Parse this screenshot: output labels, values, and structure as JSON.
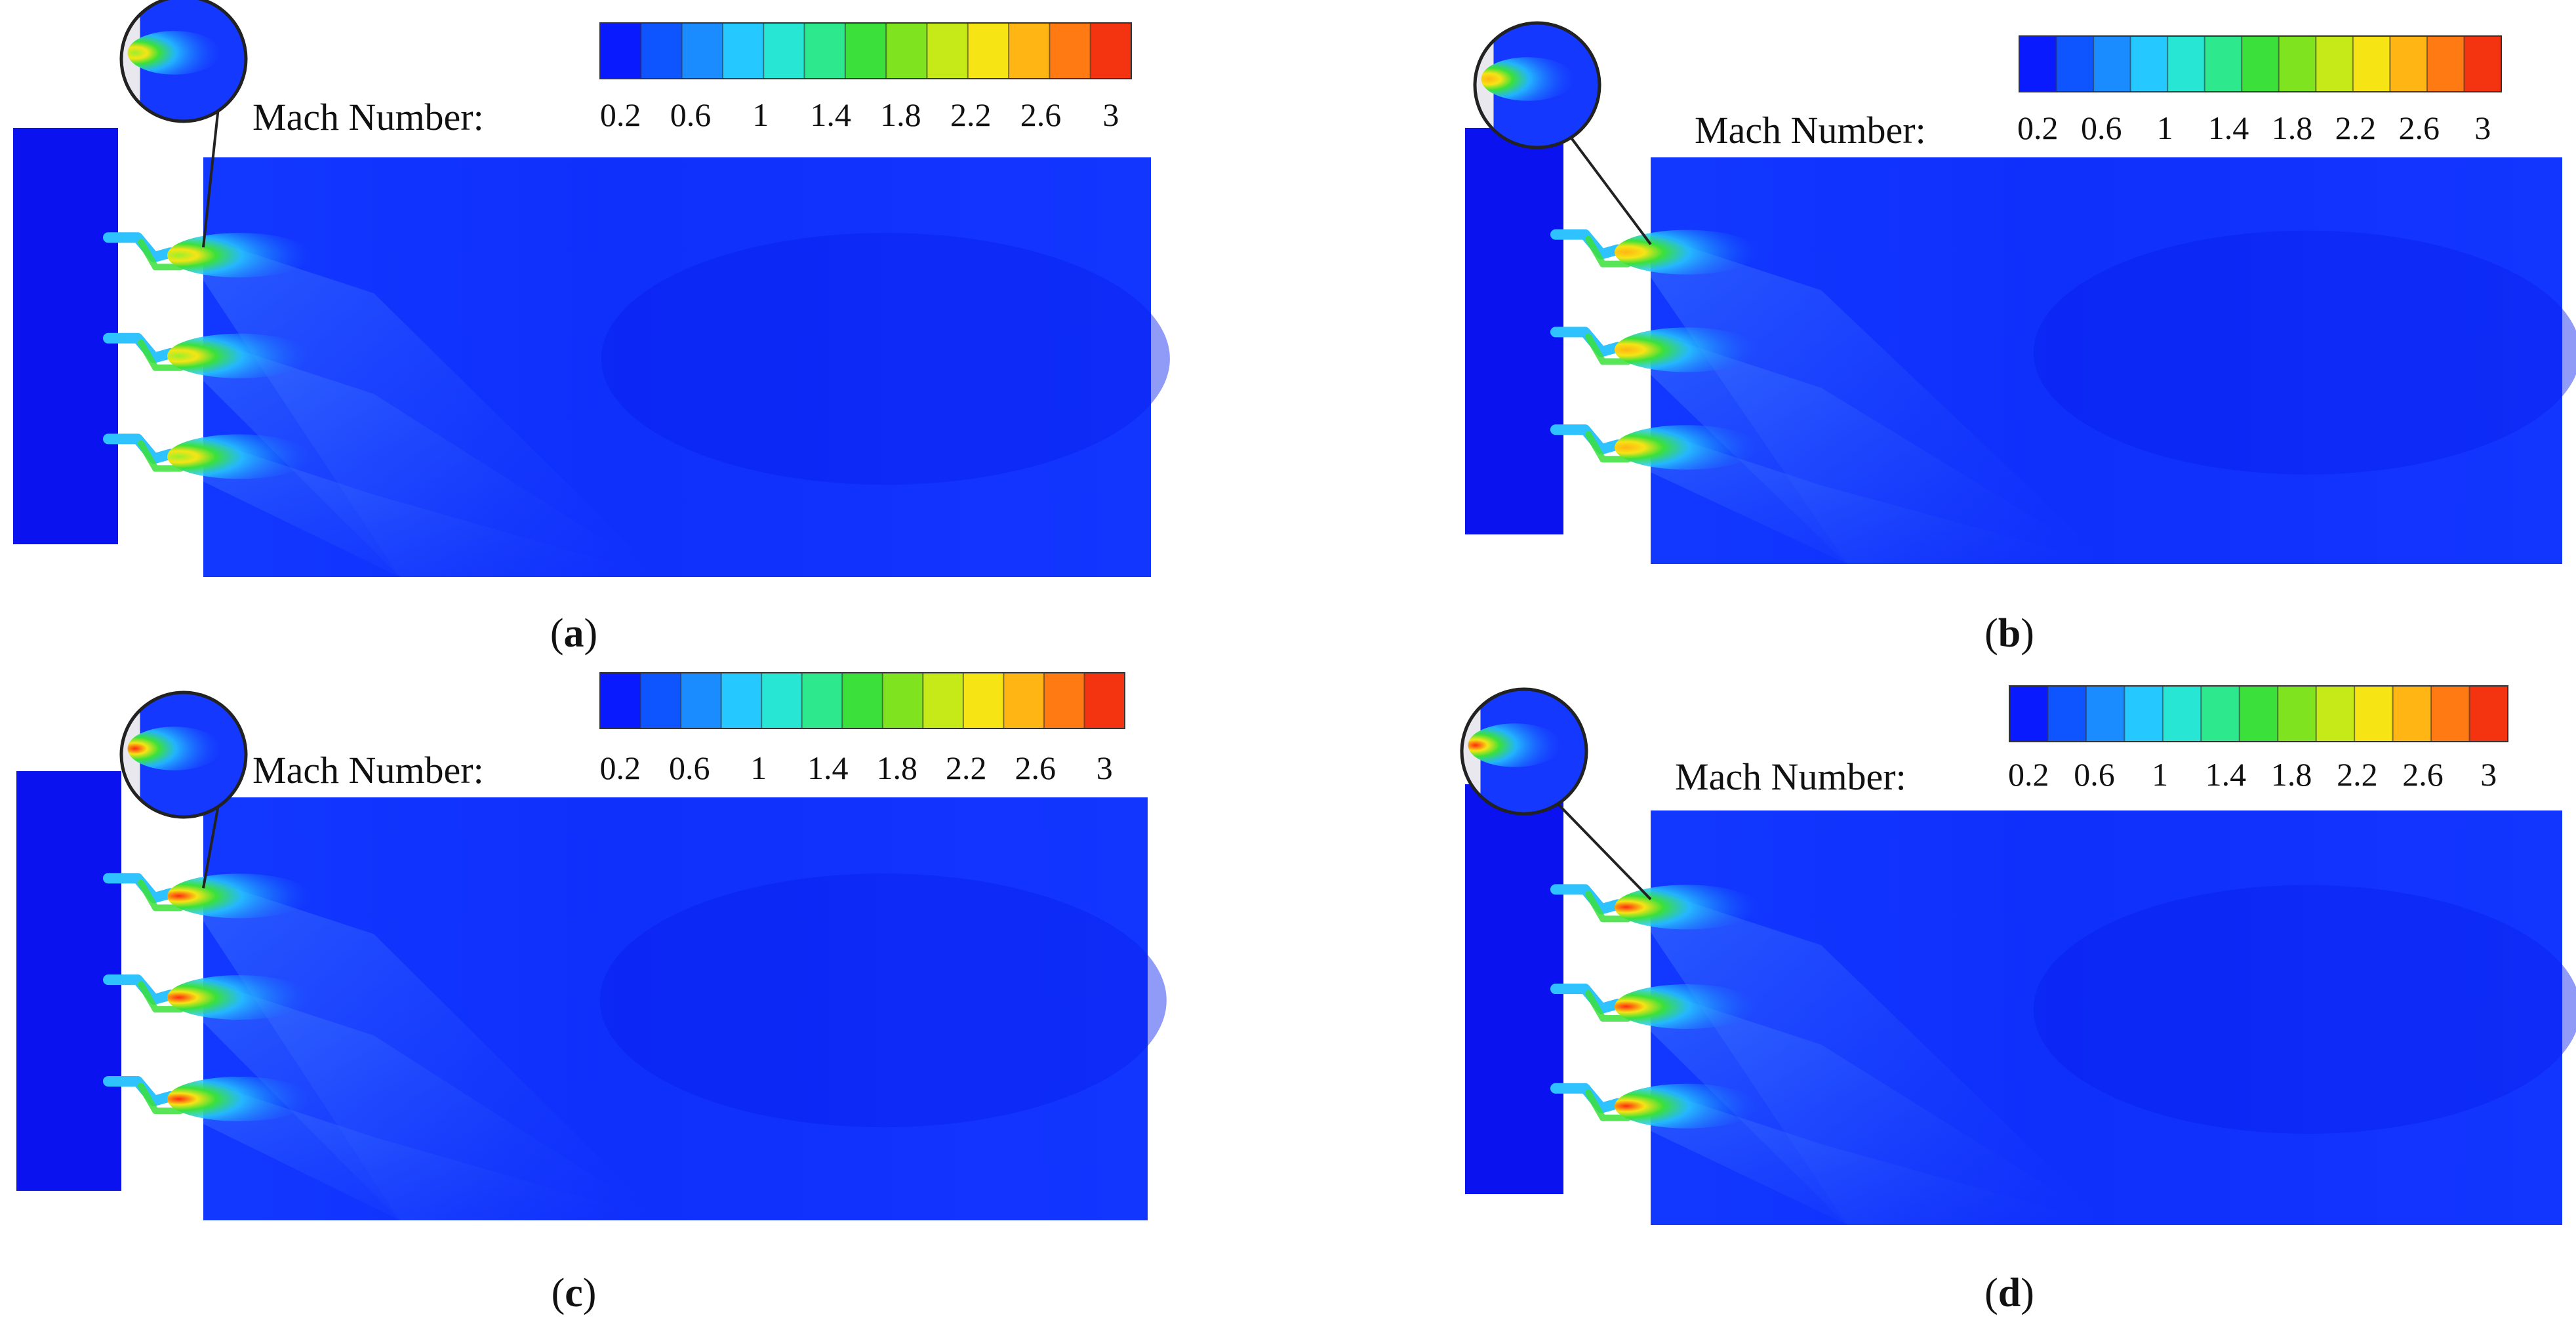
{
  "colorbar": {
    "title": "Mach Number:",
    "ticks": [
      "0.2",
      "0.6",
      "1",
      "1.4",
      "1.8",
      "2.2",
      "2.6",
      "3"
    ],
    "stops": [
      "#0a1aff",
      "#0f55ff",
      "#1a8cff",
      "#25c8ff",
      "#27e6d4",
      "#2ee88e",
      "#3be13a",
      "#7fe31f",
      "#c5ea17",
      "#f6e415",
      "#ffb514",
      "#ff7a12",
      "#f43410"
    ]
  },
  "panels": [
    {
      "id": "a",
      "caption_open": "(",
      "caption_letter": "a",
      "caption_close": ")",
      "jet_intensity": 0.45
    },
    {
      "id": "b",
      "caption_open": "(",
      "caption_letter": "b",
      "caption_close": ")",
      "jet_intensity": 0.55
    },
    {
      "id": "c",
      "caption_open": "(",
      "caption_letter": "c",
      "caption_close": ")",
      "jet_intensity": 0.8
    },
    {
      "id": "d",
      "caption_open": "(",
      "caption_letter": "d",
      "caption_close": ")",
      "jet_intensity": 1.0
    }
  ]
}
